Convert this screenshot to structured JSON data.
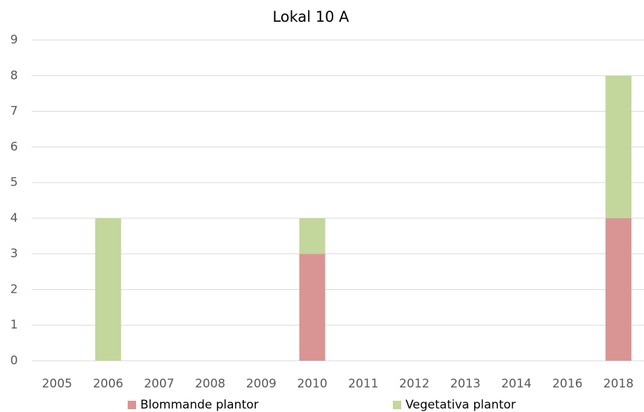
{
  "chart_data": {
    "type": "stacked_bar",
    "title": "Lokal 10 A",
    "categories": [
      "2005",
      "2006",
      "2007",
      "2008",
      "2009",
      "2010",
      "2011",
      "2012",
      "2013",
      "2014",
      "2016",
      "2018"
    ],
    "series": [
      {
        "name": "Blommande plantor",
        "color": "#d99594",
        "values": [
          0,
          0,
          0,
          0,
          0,
          3,
          0,
          0,
          0,
          0,
          0,
          4
        ]
      },
      {
        "name": "Vegetativa plantor",
        "color": "#c3d69b",
        "values": [
          0,
          4,
          0,
          0,
          0,
          1,
          0,
          0,
          0,
          0,
          0,
          4
        ]
      }
    ],
    "ylim": [
      0,
      9
    ],
    "yticks": [
      0,
      1,
      2,
      3,
      4,
      5,
      6,
      7,
      8,
      9
    ],
    "grid": true,
    "legend": "bottom"
  }
}
